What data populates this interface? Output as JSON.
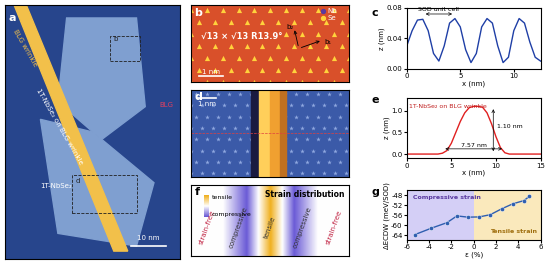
{
  "panels": {
    "a": {
      "label": "a",
      "wrinkle": "BLG wrinkle",
      "box_b": "b",
      "on_wrinkle": "1T-NbSe₂ on BLG wrinkle",
      "flake": "1T-NbSe₂",
      "box_d": "d",
      "substrate": "BLG",
      "scale": "10 nm"
    },
    "b": {
      "label": "b",
      "species": [
        "Nb",
        "Se"
      ],
      "superlattice": "√13 × √13 R13.9°",
      "vectors": [
        "b₁",
        "b₂"
      ],
      "scale": "1 nm"
    },
    "d": {
      "label": "d",
      "scale": "1 nm"
    },
    "f": {
      "label": "f",
      "title": "Strain distribution",
      "scale_ends": [
        "tensile",
        "compressive"
      ],
      "regions": [
        "strain-free",
        "compressive",
        "tensile",
        "compressive",
        "strain-free"
      ]
    }
  },
  "chart_data": [
    {
      "label": "c",
      "type": "line",
      "color": "#1f3fa6",
      "x": [
        0,
        0.5,
        1,
        1.5,
        2,
        2.5,
        3,
        3.5,
        4,
        4.5,
        5,
        5.5,
        6,
        6.5,
        7,
        7.5,
        8,
        8.5,
        9,
        9.5,
        10,
        10.5,
        11,
        11.5,
        12,
        12.5
      ],
      "values": [
        0.03,
        0.05,
        0.064,
        0.065,
        0.05,
        0.02,
        0.01,
        0.03,
        0.06,
        0.066,
        0.055,
        0.025,
        0.008,
        0.02,
        0.055,
        0.066,
        0.06,
        0.03,
        0.008,
        0.015,
        0.05,
        0.066,
        0.06,
        0.035,
        0.015,
        0.01
      ],
      "xlim": [
        0,
        12.5
      ],
      "ylim": [
        0,
        0.08
      ],
      "xticks": [
        0,
        5,
        10
      ],
      "yticks": [
        {
          "value": 0,
          "label": "0.00"
        },
        {
          "value": 0.04,
          "label": "0.04"
        },
        {
          "value": 0.08,
          "label": "0.08"
        }
      ],
      "x_label": "x (nm)",
      "y_label": "z (nm)",
      "annotation": "SOD unit cell"
    },
    {
      "label": "e",
      "type": "line",
      "color": "#e02020",
      "x": [
        0,
        0.5,
        1,
        1.5,
        2,
        2.5,
        3,
        3.5,
        4,
        4.5,
        5,
        5.5,
        6,
        6.5,
        7,
        7.5,
        8,
        8.5,
        9,
        9.5,
        10,
        10.5,
        11,
        11.5,
        12,
        12.5,
        13,
        13.5,
        14,
        14.5,
        15
      ],
      "values": [
        0,
        0,
        0,
        0,
        0,
        0,
        0,
        0,
        0.02,
        0.08,
        0.25,
        0.5,
        0.75,
        0.95,
        1.07,
        1.1,
        1.1,
        1.08,
        0.95,
        0.7,
        0.4,
        0.15,
        0.03,
        0,
        0,
        0,
        0,
        0,
        0,
        0,
        0
      ],
      "xlim": [
        0,
        15
      ],
      "ylim": [
        -0.1,
        1.3
      ],
      "xticks": [
        0,
        5,
        10,
        15
      ],
      "yticks": [
        {
          "value": 0,
          "label": "0.0"
        },
        {
          "value": 0.5,
          "label": "0.5"
        },
        {
          "value": 1.0,
          "label": "1.0"
        }
      ],
      "x_label": "x (nm)",
      "y_label": "z (nm)",
      "annotations": [
        "1T-NbSe₂ on BLG wrinkle",
        "1.10 nm",
        "7.57 nm"
      ]
    },
    {
      "label": "g",
      "type": "line",
      "marker": "o",
      "color": "#2f5fb0",
      "x": [
        -5.3,
        -3.8,
        -2.4,
        -1.5,
        -0.5,
        0.5,
        1.5,
        2.5,
        3.5,
        4.5,
        5.0
      ],
      "values": [
        -63.8,
        -61.2,
        -59,
        -56.3,
        -56.8,
        -56.7,
        -55.8,
        -53.5,
        -51.5,
        -50.2,
        -48.5
      ],
      "xlim": [
        -6,
        6
      ],
      "ylim": [
        -66,
        -46
      ],
      "xticks": [
        -6,
        -4,
        -2,
        0,
        2,
        4,
        6
      ],
      "yticks": [
        -64,
        -60,
        -56,
        -52,
        -48
      ],
      "x_label": "ε (%)",
      "y_label": "ΔECDW (meV/SOD)",
      "regions": [
        "Compressive strain",
        "Tensile strain"
      ]
    }
  ]
}
